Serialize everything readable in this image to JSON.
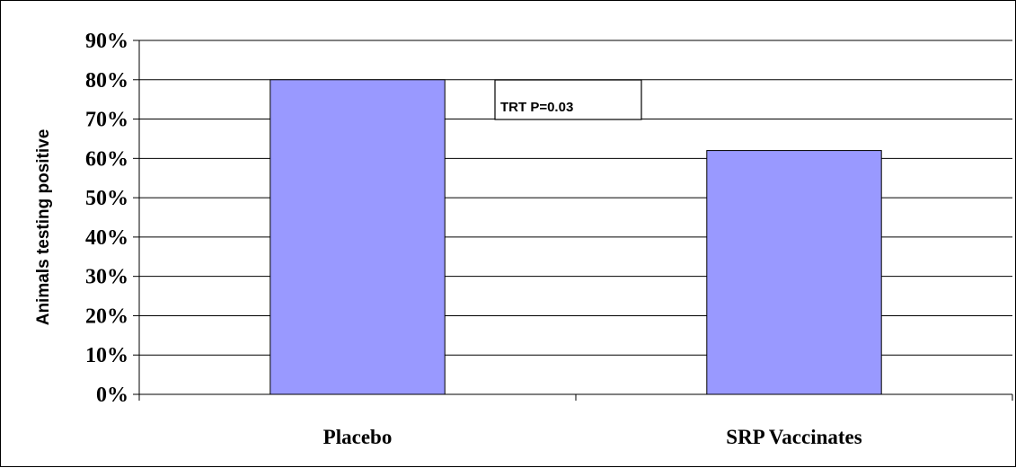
{
  "chart_data": {
    "type": "bar",
    "title": "",
    "xlabel": "",
    "ylabel": "Animals testing positive",
    "categories": [
      "Placebo",
      "SRP Vaccinates"
    ],
    "values": [
      80,
      62
    ],
    "ylim": [
      0,
      90
    ],
    "yticks": [
      0,
      10,
      20,
      30,
      40,
      50,
      60,
      70,
      80,
      90
    ],
    "ytick_format": "percent",
    "grid": "horizontal",
    "legend": "none",
    "bar_color": "#9999FF",
    "bar_edge_color": "#000000",
    "annotation": {
      "text": "TRT P=0.03"
    }
  }
}
